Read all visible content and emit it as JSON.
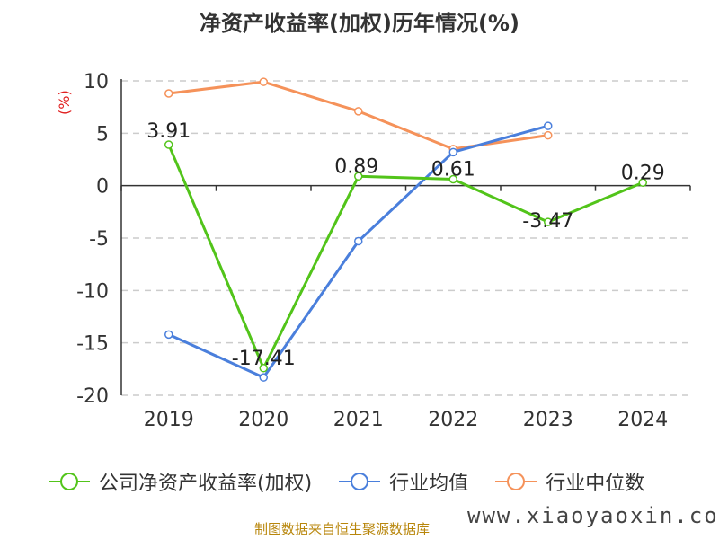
{
  "title": "净资产收益率(加权)历年情况(%)",
  "unit_label": "(%)",
  "source": "制图数据来自恒生聚源数据库",
  "watermark": "www.xiaoyaoxin.com",
  "chart_data": {
    "type": "line",
    "title": "净资产收益率(加权)历年情况(%)",
    "ylabel": "(%)",
    "categories": [
      "2019",
      "2020",
      "2021",
      "2022",
      "2023",
      "2024"
    ],
    "ylim": [
      -20,
      10
    ],
    "yticks": [
      10,
      5,
      0,
      -5,
      -10,
      -15,
      -20
    ],
    "grid": true,
    "legend": "bottom",
    "series": [
      {
        "name": "公司净资产收益率(加权)",
        "color": "#52c41a",
        "values": [
          3.91,
          -17.41,
          0.89,
          0.61,
          -3.47,
          0.29
        ],
        "labels": [
          "3.91",
          "-17.41",
          "0.89",
          "0.61",
          "-3.47",
          "0.29"
        ]
      },
      {
        "name": "行业均值",
        "color": "#4a7fdc",
        "values": [
          -14.2,
          -18.3,
          -5.3,
          3.2,
          5.7,
          null
        ]
      },
      {
        "name": "行业中位数",
        "color": "#f5925a",
        "values": [
          8.8,
          9.9,
          7.1,
          3.5,
          4.8,
          null
        ]
      }
    ]
  }
}
